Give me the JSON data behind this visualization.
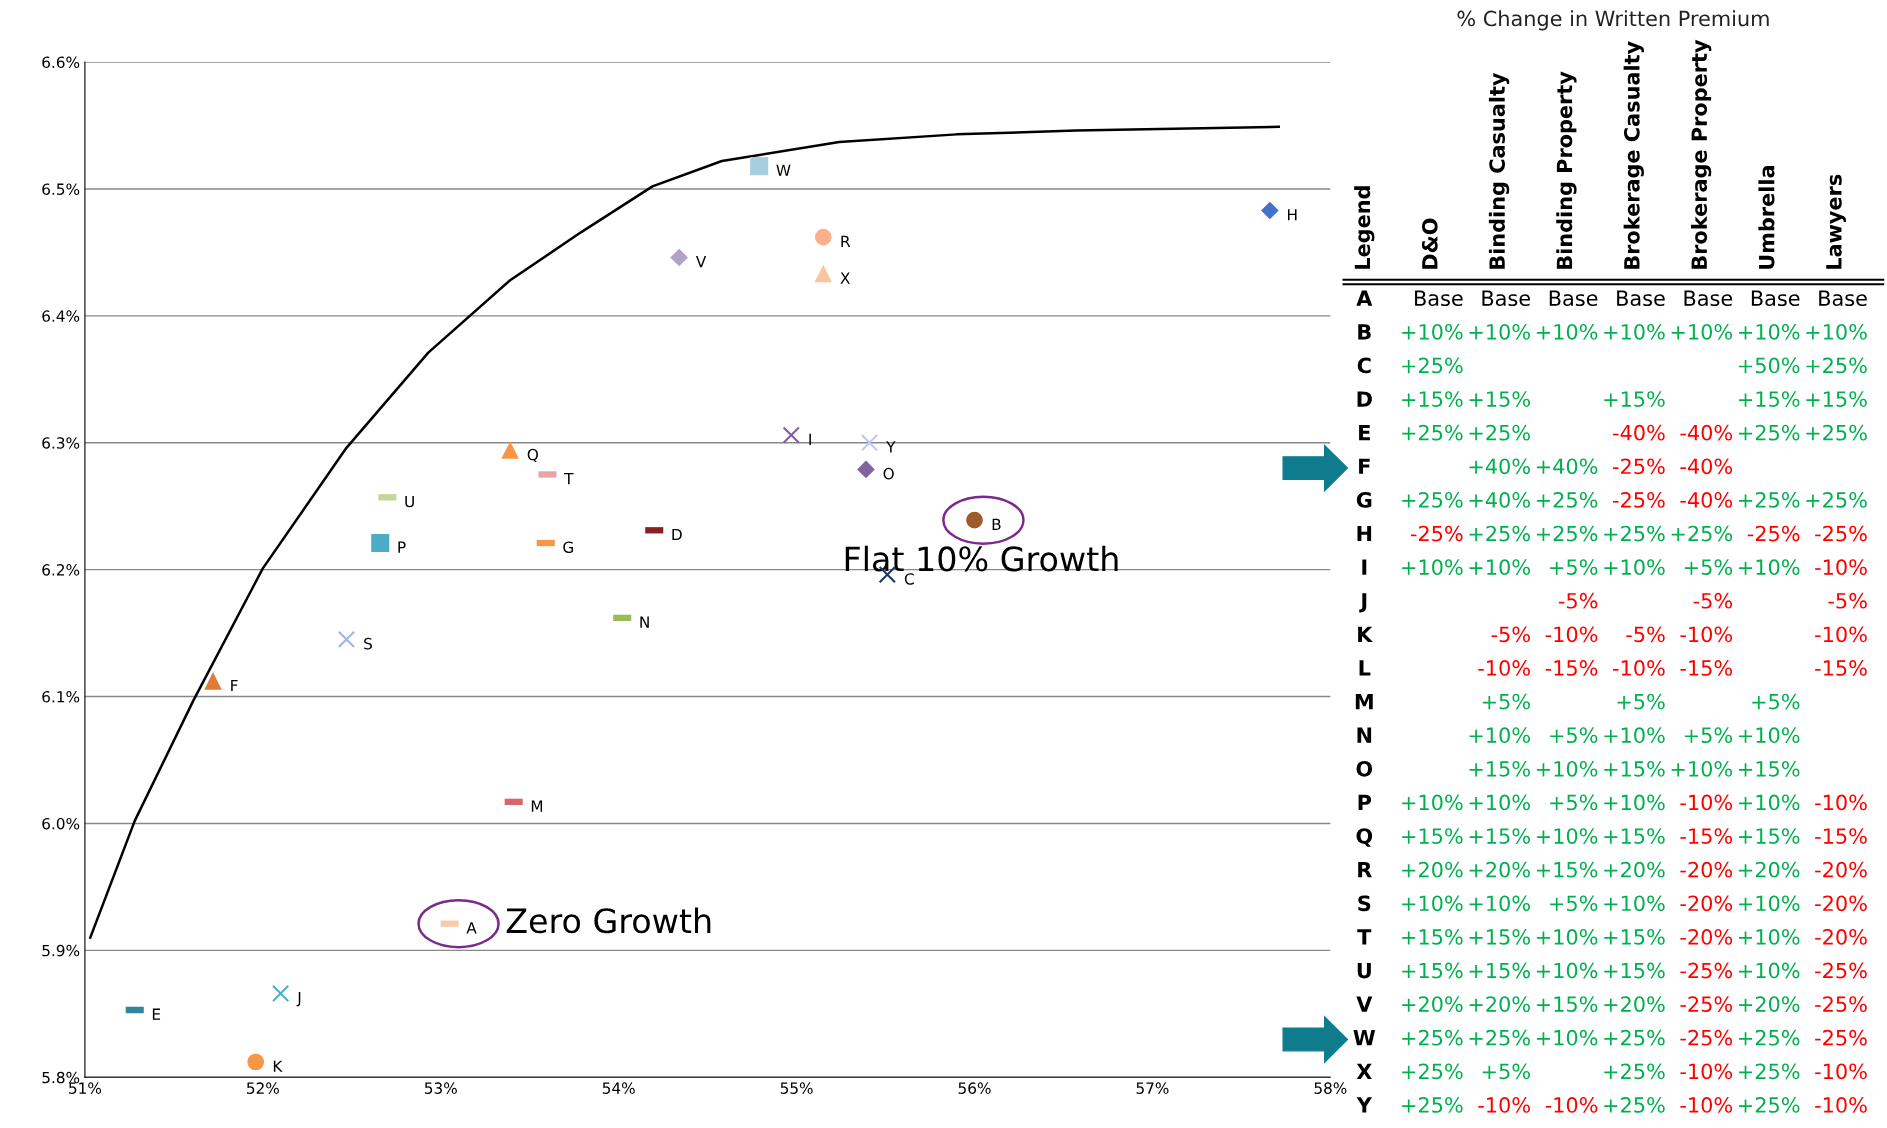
{
  "chart_data": [
    {
      "type": "scatter",
      "xlim": [
        51,
        58
      ],
      "ylim": [
        5.8,
        6.6
      ],
      "xticks": [
        {
          "value": 51,
          "label": "51%"
        },
        {
          "value": 52,
          "label": "52%"
        },
        {
          "value": 53,
          "label": "53%"
        },
        {
          "value": 54,
          "label": "54%"
        },
        {
          "value": 55,
          "label": "55%"
        },
        {
          "value": 56,
          "label": "56%"
        },
        {
          "value": 57,
          "label": "57%"
        },
        {
          "value": 58,
          "label": "58%"
        }
      ],
      "yticks": [
        {
          "value": 5.8,
          "label": "5.8%"
        },
        {
          "value": 5.9,
          "label": "5.9%"
        },
        {
          "value": 6.0,
          "label": "6.0%"
        },
        {
          "value": 6.1,
          "label": "6.1%"
        },
        {
          "value": 6.2,
          "label": "6.2%"
        },
        {
          "value": 6.3,
          "label": "6.3%"
        },
        {
          "value": 6.4,
          "label": "6.4%"
        },
        {
          "value": 6.5,
          "label": "6.5%"
        },
        {
          "value": 6.6,
          "label": "6.6%"
        }
      ],
      "grid": "y",
      "annotations": [
        {
          "text": "Zero Growth",
          "x": 53.05,
          "y": 5.921
        },
        {
          "text": "Flat 10% Growth",
          "x": 56.0,
          "y": 6.239
        }
      ],
      "series": [
        {
          "type": "line",
          "color": "#000000",
          "marker": "none",
          "x": [
            51.03,
            51.28,
            51.61,
            52.0,
            52.47,
            52.93,
            53.39,
            53.79,
            54.19,
            54.58,
            55.24,
            55.9,
            56.57,
            57.71
          ],
          "values": [
            5.91,
            6.002,
            6.097,
            6.201,
            6.296,
            6.371,
            6.428,
            6.466,
            6.502,
            6.522,
            6.537,
            6.543,
            6.546,
            6.549
          ]
        },
        {
          "name": "A",
          "color": "#f8cbad",
          "x": [
            53.05
          ],
          "values": [
            5.921
          ]
        },
        {
          "name": "B",
          "color": "#9e5a2b",
          "marker": "circle",
          "x": [
            56.0
          ],
          "values": [
            6.239
          ]
        },
        {
          "name": "C",
          "color": "#1f3864",
          "marker": "cross",
          "x": [
            55.51
          ],
          "values": [
            6.196
          ]
        },
        {
          "name": "D",
          "color": "#8b2020",
          "x": [
            54.2
          ],
          "values": [
            6.231
          ]
        },
        {
          "name": "E",
          "color": "#31859c",
          "x": [
            51.28
          ],
          "values": [
            5.853
          ]
        },
        {
          "name": "F",
          "color": "#e07b39",
          "marker": "triangle",
          "x": [
            51.72
          ],
          "values": [
            6.112
          ]
        },
        {
          "name": "G",
          "color": "#f79646",
          "x": [
            53.59
          ],
          "values": [
            6.221
          ]
        },
        {
          "name": "H",
          "color": "#4472c4",
          "marker": "diamond",
          "x": [
            57.66
          ],
          "values": [
            6.483
          ]
        },
        {
          "name": "I",
          "color": "#7f5fa0",
          "marker": "cross",
          "x": [
            54.97
          ],
          "values": [
            6.306
          ]
        },
        {
          "name": "J",
          "color": "#4bacc6",
          "marker": "cross",
          "x": [
            52.1
          ],
          "values": [
            5.866
          ]
        },
        {
          "name": "K",
          "color": "#f79646",
          "marker": "circle",
          "x": [
            51.96
          ],
          "values": [
            5.812
          ]
        },
        {
          "name": "M",
          "color": "#d9646a",
          "x": [
            53.41
          ],
          "values": [
            6.017
          ]
        },
        {
          "name": "N",
          "color": "#9bbb59",
          "x": [
            54.02
          ],
          "values": [
            6.162
          ]
        },
        {
          "name": "O",
          "color": "#8064a2",
          "marker": "diamond",
          "x": [
            55.39
          ],
          "values": [
            6.279
          ]
        },
        {
          "name": "P",
          "color": "#4bacc6",
          "marker": "square",
          "x": [
            52.66
          ],
          "values": [
            6.221
          ]
        },
        {
          "name": "Q",
          "color": "#f79646",
          "marker": "triangle",
          "x": [
            53.39
          ],
          "values": [
            6.294
          ]
        },
        {
          "name": "R",
          "color": "#fab08a",
          "marker": "circle",
          "x": [
            55.15
          ],
          "values": [
            6.462
          ]
        },
        {
          "name": "S",
          "color": "#a5b4e0",
          "marker": "cross",
          "x": [
            52.47
          ],
          "values": [
            6.145
          ]
        },
        {
          "name": "T",
          "color": "#e6a5a5",
          "x": [
            53.6
          ],
          "values": [
            6.275
          ]
        },
        {
          "name": "U",
          "color": "#c3d69b",
          "x": [
            52.7
          ],
          "values": [
            6.257
          ]
        },
        {
          "name": "V",
          "color": "#b3a2c7",
          "marker": "diamond",
          "x": [
            54.34
          ],
          "values": [
            6.446
          ]
        },
        {
          "name": "W",
          "color": "#a5cfe0",
          "marker": "square",
          "x": [
            54.79
          ],
          "values": [
            6.518
          ]
        },
        {
          "name": "X",
          "color": "#fbc4a0",
          "marker": "triangle",
          "x": [
            55.15
          ],
          "values": [
            6.433
          ]
        },
        {
          "name": "Y",
          "color": "#c0c8f0",
          "marker": "cross",
          "x": [
            55.41
          ],
          "values": [
            6.3
          ]
        }
      ]
    },
    {
      "type": "other",
      "title": "% Change in Written Premium",
      "ylabel": "Legend",
      "categories": [
        "D&O",
        "Binding Casualty",
        "Binding Property",
        "Brokerage Casualty",
        "Brokerage Property",
        "Umbrella",
        "Lawyers"
      ],
      "y_categories": [
        "A",
        "B",
        "C",
        "D",
        "E",
        "F",
        "G",
        "H",
        "I",
        "J",
        "K",
        "L",
        "M",
        "N",
        "O",
        "P",
        "Q",
        "R",
        "S",
        "T",
        "U",
        "V",
        "W",
        "X",
        "Y"
      ],
      "cell_labels": [
        [
          "Base",
          "Base",
          "Base",
          "Base",
          "Base",
          "Base",
          "Base"
        ],
        [
          "+10%",
          "+10%",
          "+10%",
          "+10%",
          "+10%",
          "+10%",
          "+10%"
        ],
        [
          "+25%",
          null,
          null,
          null,
          null,
          "+50%",
          "+25%"
        ],
        [
          "+15%",
          "+15%",
          null,
          "+15%",
          null,
          "+15%",
          "+15%"
        ],
        [
          "+25%",
          "+25%",
          null,
          "-40%",
          "-40%",
          "+25%",
          "+25%"
        ],
        [
          null,
          "+40%",
          "+40%",
          "-25%",
          "-40%",
          null,
          null
        ],
        [
          "+25%",
          "+40%",
          "+25%",
          "-25%",
          "-40%",
          "+25%",
          "+25%"
        ],
        [
          "-25%",
          "+25%",
          "+25%",
          "+25%",
          "+25%",
          "-25%",
          "-25%"
        ],
        [
          "+10%",
          "+10%",
          "+5%",
          "+10%",
          "+5%",
          "+10%",
          "-10%"
        ],
        [
          null,
          null,
          "-5%",
          null,
          "-5%",
          null,
          "-5%"
        ],
        [
          null,
          "-5%",
          "-10%",
          "-5%",
          "-10%",
          null,
          "-10%"
        ],
        [
          null,
          "-10%",
          "-15%",
          "-10%",
          "-15%",
          null,
          "-15%"
        ],
        [
          null,
          "+5%",
          null,
          "+5%",
          null,
          "+5%",
          null
        ],
        [
          null,
          "+10%",
          "+5%",
          "+10%",
          "+5%",
          "+10%",
          null
        ],
        [
          null,
          "+15%",
          "+10%",
          "+15%",
          "+10%",
          "+15%",
          null
        ],
        [
          "+10%",
          "+10%",
          "+5%",
          "+10%",
          "-10%",
          "+10%",
          "-10%"
        ],
        [
          "+15%",
          "+15%",
          "+10%",
          "+15%",
          "-15%",
          "+15%",
          "-15%"
        ],
        [
          "+20%",
          "+20%",
          "+15%",
          "+20%",
          "-20%",
          "+20%",
          "-20%"
        ],
        [
          "+10%",
          "+10%",
          "+5%",
          "+10%",
          "-20%",
          "+10%",
          "-20%"
        ],
        [
          "+15%",
          "+15%",
          "+10%",
          "+15%",
          "-20%",
          "+10%",
          "-20%"
        ],
        [
          "+15%",
          "+15%",
          "+10%",
          "+15%",
          "-25%",
          "+10%",
          "-25%"
        ],
        [
          "+20%",
          "+20%",
          "+15%",
          "+20%",
          "-25%",
          "+20%",
          "-25%"
        ],
        [
          "+25%",
          "+25%",
          "+10%",
          "+25%",
          "-25%",
          "+25%",
          "-25%"
        ],
        [
          "+25%",
          "+5%",
          null,
          "+25%",
          "-10%",
          "+25%",
          "-10%"
        ],
        [
          "+25%",
          "-10%",
          "-10%",
          "+25%",
          "-10%",
          "+25%",
          "-10%"
        ]
      ],
      "colors": [
        [
          "#000000",
          "#000000",
          "#000000",
          "#000000",
          "#000000",
          "#000000",
          "#000000"
        ],
        [
          "#00b050",
          "#00b050",
          "#00b050",
          "#00b050",
          "#00b050",
          "#00b050",
          "#00b050"
        ],
        [
          "#00b050",
          null,
          null,
          null,
          null,
          "#00b050",
          "#00b050"
        ],
        [
          "#00b050",
          "#00b050",
          null,
          "#00b050",
          null,
          "#00b050",
          "#00b050"
        ],
        [
          "#00b050",
          "#00b050",
          null,
          "#ff0000",
          "#ff0000",
          "#00b050",
          "#00b050"
        ],
        [
          null,
          "#00b050",
          "#00b050",
          "#ff0000",
          "#ff0000",
          null,
          null
        ],
        [
          "#00b050",
          "#00b050",
          "#00b050",
          "#ff0000",
          "#ff0000",
          "#00b050",
          "#00b050"
        ],
        [
          "#ff0000",
          "#00b050",
          "#00b050",
          "#00b050",
          "#00b050",
          "#ff0000",
          "#ff0000"
        ],
        [
          "#00b050",
          "#00b050",
          "#00b050",
          "#00b050",
          "#00b050",
          "#00b050",
          "#ff0000"
        ],
        [
          null,
          null,
          "#ff0000",
          null,
          "#ff0000",
          null,
          "#ff0000"
        ],
        [
          null,
          "#ff0000",
          "#ff0000",
          "#ff0000",
          "#ff0000",
          null,
          "#ff0000"
        ],
        [
          null,
          "#ff0000",
          "#ff0000",
          "#ff0000",
          "#ff0000",
          null,
          "#ff0000"
        ],
        [
          null,
          "#00b050",
          null,
          "#00b050",
          null,
          "#00b050",
          null
        ],
        [
          null,
          "#00b050",
          "#00b050",
          "#00b050",
          "#00b050",
          "#00b050",
          null
        ],
        [
          null,
          "#00b050",
          "#00b050",
          "#00b050",
          "#00b050",
          "#00b050",
          null
        ],
        [
          "#00b050",
          "#00b050",
          "#00b050",
          "#00b050",
          "#ff0000",
          "#00b050",
          "#ff0000"
        ],
        [
          "#00b050",
          "#00b050",
          "#00b050",
          "#00b050",
          "#ff0000",
          "#00b050",
          "#ff0000"
        ],
        [
          "#00b050",
          "#00b050",
          "#00b050",
          "#00b050",
          "#ff0000",
          "#00b050",
          "#ff0000"
        ],
        [
          "#00b050",
          "#00b050",
          "#00b050",
          "#00b050",
          "#ff0000",
          "#00b050",
          "#ff0000"
        ],
        [
          "#00b050",
          "#00b050",
          "#00b050",
          "#00b050",
          "#ff0000",
          "#00b050",
          "#ff0000"
        ],
        [
          "#00b050",
          "#00b050",
          "#00b050",
          "#00b050",
          "#ff0000",
          "#00b050",
          "#ff0000"
        ],
        [
          "#00b050",
          "#00b050",
          "#00b050",
          "#00b050",
          "#ff0000",
          "#00b050",
          "#ff0000"
        ],
        [
          "#00b050",
          "#00b050",
          "#00b050",
          "#00b050",
          "#ff0000",
          "#00b050",
          "#ff0000"
        ],
        [
          "#00b050",
          "#00b050",
          null,
          "#00b050",
          "#ff0000",
          "#00b050",
          "#ff0000"
        ],
        [
          "#00b050",
          "#ff0000",
          "#ff0000",
          "#00b050",
          "#ff0000",
          "#00b050",
          "#ff0000"
        ]
      ]
    }
  ]
}
